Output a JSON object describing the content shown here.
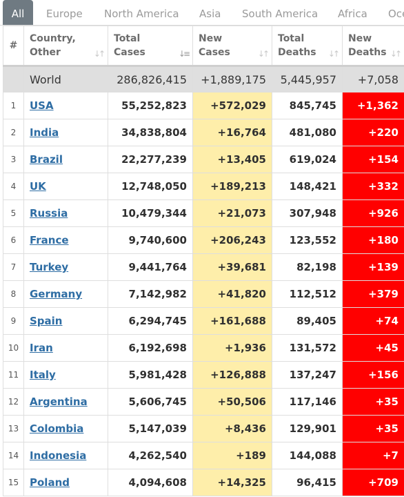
{
  "tabs": [
    {
      "label": "All",
      "active": true
    },
    {
      "label": "Europe"
    },
    {
      "label": "North America"
    },
    {
      "label": "Asia"
    },
    {
      "label": "South America"
    },
    {
      "label": "Africa"
    },
    {
      "label": "Oceania"
    }
  ],
  "headers": {
    "num": "#",
    "country": [
      "Country,",
      "Other"
    ],
    "total_cases": [
      "Total",
      "Cases"
    ],
    "new_cases": [
      "New",
      "Cases"
    ],
    "total_deaths": [
      "Total",
      "Deaths"
    ],
    "new_deaths": [
      "New",
      "Deaths"
    ]
  },
  "sort_icons": {
    "idle": "↓↑",
    "active": "↓≡"
  },
  "world": {
    "name": "World",
    "total_cases": "286,826,415",
    "new_cases": "+1,889,175",
    "total_deaths": "5,445,957",
    "new_deaths": "+7,058"
  },
  "rows": [
    {
      "idx": "1",
      "country": "USA",
      "total_cases": "55,252,823",
      "new_cases": "+572,029",
      "total_deaths": "845,745",
      "new_deaths": "+1,362"
    },
    {
      "idx": "2",
      "country": "India",
      "total_cases": "34,838,804",
      "new_cases": "+16,764",
      "total_deaths": "481,080",
      "new_deaths": "+220"
    },
    {
      "idx": "3",
      "country": "Brazil",
      "total_cases": "22,277,239",
      "new_cases": "+13,405",
      "total_deaths": "619,024",
      "new_deaths": "+154"
    },
    {
      "idx": "4",
      "country": "UK",
      "total_cases": "12,748,050",
      "new_cases": "+189,213",
      "total_deaths": "148,421",
      "new_deaths": "+332"
    },
    {
      "idx": "5",
      "country": "Russia",
      "total_cases": "10,479,344",
      "new_cases": "+21,073",
      "total_deaths": "307,948",
      "new_deaths": "+926"
    },
    {
      "idx": "6",
      "country": "France",
      "total_cases": "9,740,600",
      "new_cases": "+206,243",
      "total_deaths": "123,552",
      "new_deaths": "+180"
    },
    {
      "idx": "7",
      "country": "Turkey",
      "total_cases": "9,441,764",
      "new_cases": "+39,681",
      "total_deaths": "82,198",
      "new_deaths": "+139"
    },
    {
      "idx": "8",
      "country": "Germany",
      "total_cases": "7,142,982",
      "new_cases": "+41,820",
      "total_deaths": "112,512",
      "new_deaths": "+379"
    },
    {
      "idx": "9",
      "country": "Spain",
      "total_cases": "6,294,745",
      "new_cases": "+161,688",
      "total_deaths": "89,405",
      "new_deaths": "+74"
    },
    {
      "idx": "10",
      "country": "Iran",
      "total_cases": "6,192,698",
      "new_cases": "+1,936",
      "total_deaths": "131,572",
      "new_deaths": "+45"
    },
    {
      "idx": "11",
      "country": "Italy",
      "total_cases": "5,981,428",
      "new_cases": "+126,888",
      "total_deaths": "137,247",
      "new_deaths": "+156"
    },
    {
      "idx": "12",
      "country": "Argentina",
      "total_cases": "5,606,745",
      "new_cases": "+50,506",
      "total_deaths": "117,146",
      "new_deaths": "+35"
    },
    {
      "idx": "13",
      "country": "Colombia",
      "total_cases": "5,147,039",
      "new_cases": "+8,436",
      "total_deaths": "129,901",
      "new_deaths": "+35"
    },
    {
      "idx": "14",
      "country": "Indonesia",
      "total_cases": "4,262,540",
      "new_cases": "+189",
      "total_deaths": "144,088",
      "new_deaths": "+7"
    },
    {
      "idx": "15",
      "country": "Poland",
      "total_cases": "4,094,608",
      "new_cases": "+14,325",
      "total_deaths": "96,415",
      "new_deaths": "+709"
    }
  ],
  "colors": {
    "tab_active_bg": "#6f7a82",
    "new_cases_bg": "#feeeaa",
    "new_deaths_bg": "#ff0000",
    "world_row_bg": "#dfdfdf",
    "link": "#2e6da4"
  }
}
